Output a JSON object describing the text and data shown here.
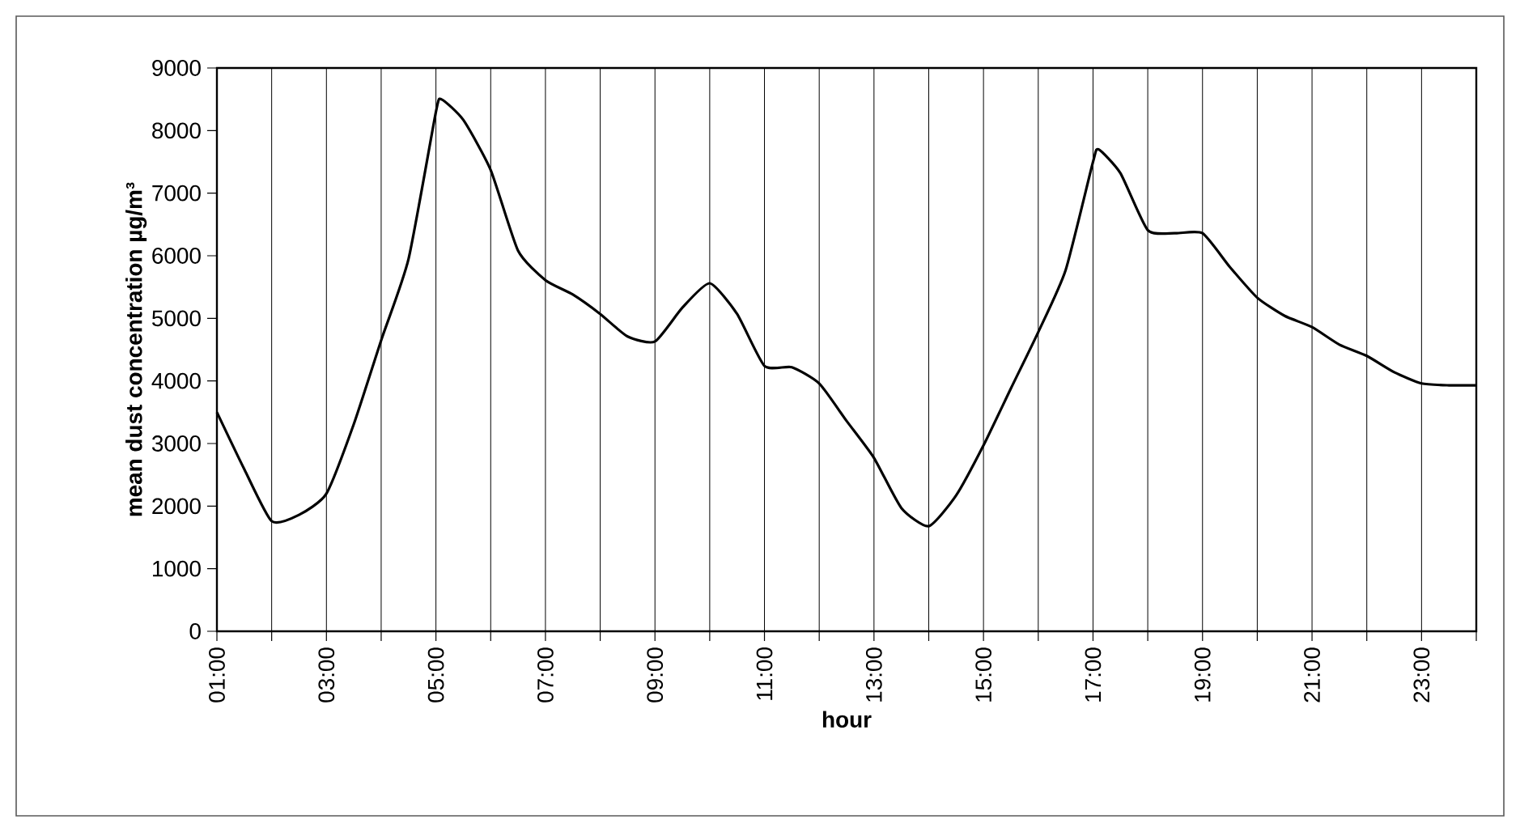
{
  "chart_data": {
    "type": "line",
    "xlabel": "hour",
    "ylabel": "mean dust concentration µg/m³",
    "x": [
      1,
      1.5,
      2,
      2.5,
      3,
      3.5,
      4,
      4.5,
      5,
      5.1,
      5.5,
      6,
      6.5,
      7,
      7.5,
      8,
      8.5,
      9,
      9.5,
      10,
      10.5,
      11,
      11.5,
      12,
      12.5,
      13,
      13.5,
      14,
      14.5,
      15,
      15.5,
      16,
      16.5,
      17,
      17.1,
      17.5,
      18,
      18.5,
      19,
      19.5,
      20,
      20.5,
      21,
      21.5,
      22,
      22.5,
      23,
      23.5,
      24
    ],
    "series": [
      {
        "color": "#000000",
        "values": [
          3500,
          2590,
          1760,
          1860,
          2200,
          3310,
          4650,
          5950,
          8300,
          8500,
          8170,
          7370,
          6080,
          5610,
          5380,
          5070,
          4710,
          4630,
          5170,
          5560,
          5070,
          4240,
          4220,
          3960,
          3360,
          2770,
          1970,
          1680,
          2170,
          2970,
          3880,
          4780,
          5770,
          7500,
          7700,
          7320,
          6410,
          6360,
          6360,
          5820,
          5330,
          5040,
          4860,
          4580,
          4400,
          4140,
          3960,
          3930,
          3930
        ]
      }
    ],
    "xlim": [
      1,
      24
    ],
    "xticks": [
      {
        "value": 1,
        "label": "01:00"
      },
      {
        "value": 2,
        "label": null
      },
      {
        "value": 3,
        "label": "03:00"
      },
      {
        "value": 4,
        "label": null
      },
      {
        "value": 5,
        "label": "05:00"
      },
      {
        "value": 6,
        "label": null
      },
      {
        "value": 7,
        "label": "07:00"
      },
      {
        "value": 8,
        "label": null
      },
      {
        "value": 9,
        "label": "09:00"
      },
      {
        "value": 10,
        "label": null
      },
      {
        "value": 11,
        "label": "11:00"
      },
      {
        "value": 12,
        "label": null
      },
      {
        "value": 13,
        "label": "13:00"
      },
      {
        "value": 14,
        "label": null
      },
      {
        "value": 15,
        "label": "15:00"
      },
      {
        "value": 16,
        "label": null
      },
      {
        "value": 17,
        "label": "17:00"
      },
      {
        "value": 18,
        "label": null
      },
      {
        "value": 19,
        "label": "19:00"
      },
      {
        "value": 20,
        "label": null
      },
      {
        "value": 21,
        "label": "21:00"
      },
      {
        "value": 22,
        "label": null
      },
      {
        "value": 23,
        "label": "23:00"
      },
      {
        "value": 24,
        "label": null
      }
    ],
    "ylim": [
      0,
      9000
    ],
    "yticks": [
      0,
      1000,
      2000,
      3000,
      4000,
      5000,
      6000,
      7000,
      8000,
      9000
    ],
    "grid": "x",
    "marker": "none",
    "line_style": "solid"
  }
}
